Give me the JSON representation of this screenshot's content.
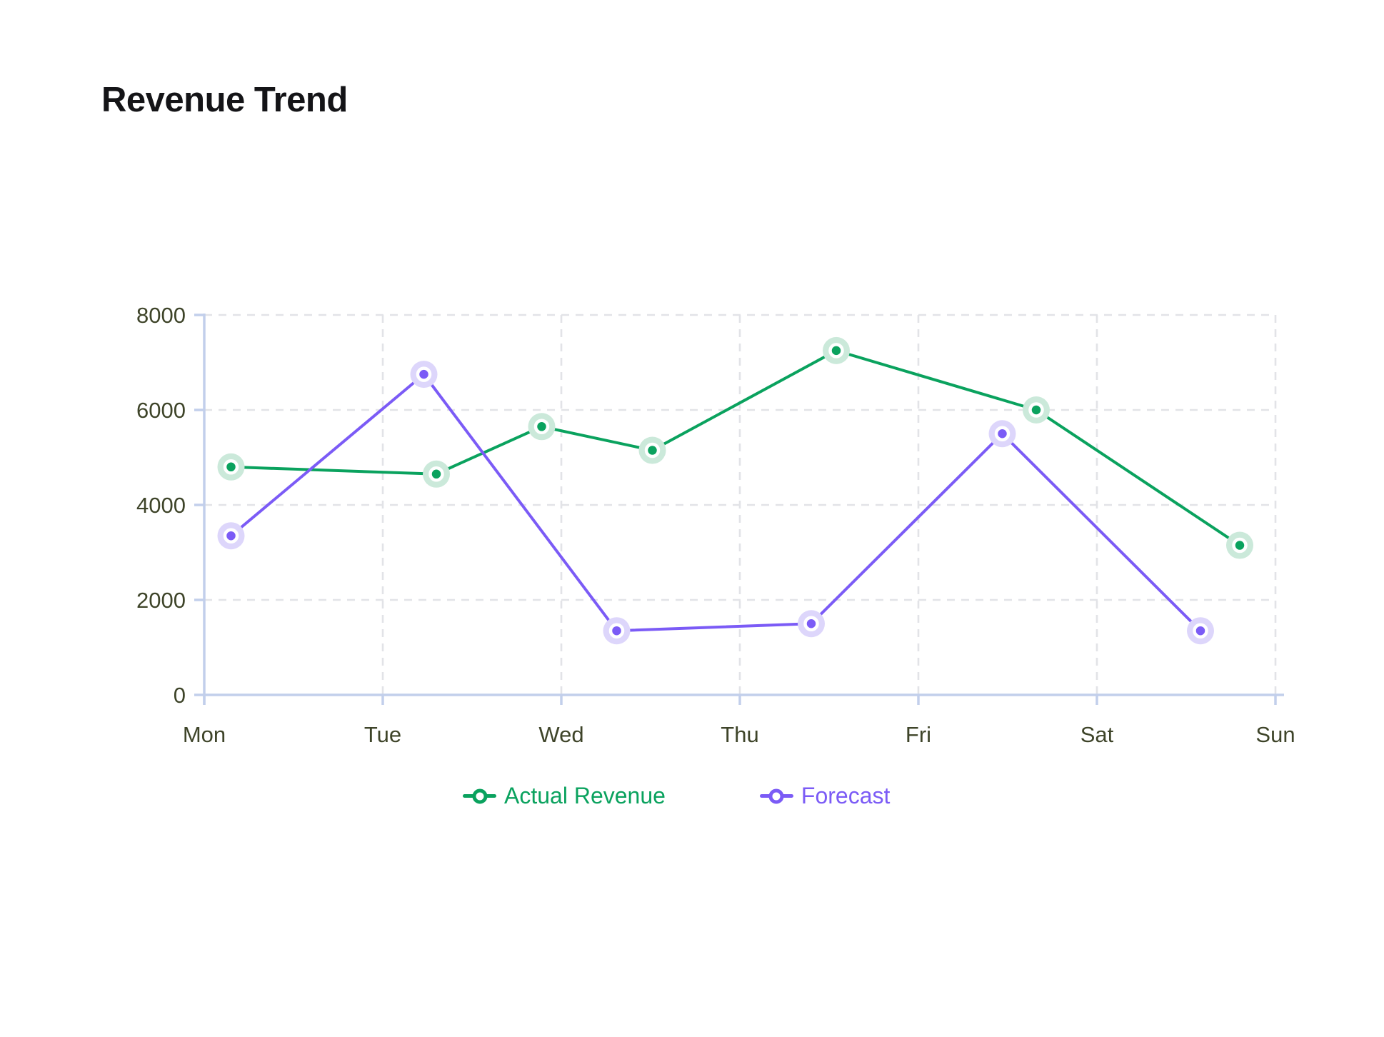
{
  "title": "Revenue Trend",
  "chart_data": {
    "type": "line",
    "title": "Revenue Trend",
    "xlabel": "",
    "ylabel": "",
    "x_axis": {
      "tick_labels": [
        "Mon",
        "Tue",
        "Wed",
        "Thu",
        "Fri",
        "Sat",
        "Sun"
      ],
      "range_days": [
        0,
        6
      ]
    },
    "y_axis": {
      "ticks": [
        0,
        2000,
        4000,
        6000,
        8000
      ],
      "range": [
        0,
        8000
      ]
    },
    "grid": "dashed horizontal lines at y ticks and dashed vertical lines at day ticks",
    "legend_position": "bottom-center",
    "series": [
      {
        "name": "Actual Revenue",
        "color": "#0aa25e",
        "halo_color": "#cbe9da",
        "x_days": [
          0.15,
          1.3,
          1.89,
          2.51,
          3.54,
          4.66,
          5.8
        ],
        "values": [
          4800,
          4650,
          5650,
          5150,
          7250,
          6000,
          3150
        ]
      },
      {
        "name": "Forecast",
        "color": "#7b5bf6",
        "halo_color": "#ddd6fb",
        "x_days": [
          0.15,
          1.23,
          2.31,
          3.4,
          4.47,
          5.58
        ],
        "values": [
          3350,
          6750,
          1350,
          1500,
          5500,
          1350
        ]
      }
    ]
  },
  "legend": {
    "items": [
      {
        "label": "Actual Revenue",
        "color": "#0aa25e"
      },
      {
        "label": "Forecast",
        "color": "#7b5bf6"
      }
    ]
  },
  "colors": {
    "background": "#ffffff",
    "title_text": "#141417",
    "tick_label": "#3e4429",
    "axis_line": "#c2cfeb",
    "gridline": "#e2e3e7",
    "point_ring": "#ffffff"
  }
}
